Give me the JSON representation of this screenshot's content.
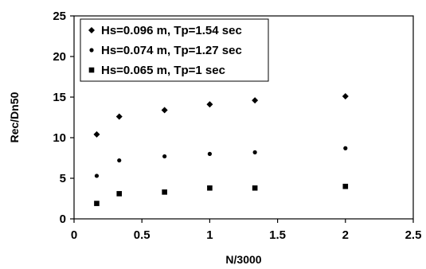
{
  "chart_data": {
    "type": "scatter",
    "xlabel": "N/3000",
    "ylabel": "Rec/Dn50",
    "xlim": [
      0,
      2.5
    ],
    "ylim": [
      0,
      25
    ],
    "xticks": [
      "0",
      "0.5",
      "1",
      "1.5",
      "2",
      "2.5"
    ],
    "yticks": [
      "0",
      "5",
      "10",
      "15",
      "20",
      "25"
    ],
    "grid": false,
    "legend_position": "top-left",
    "series": [
      {
        "name": "Hs=0.096 m,  Tp=1.54 sec",
        "marker": "diamond",
        "x": [
          0.167,
          0.333,
          0.667,
          1.0,
          1.333,
          2.0
        ],
        "y": [
          10.4,
          12.6,
          13.4,
          14.1,
          14.6,
          15.1
        ]
      },
      {
        "name": "Hs=0.074 m,  Tp=1.27 sec",
        "marker": "circle",
        "x": [
          0.167,
          0.333,
          0.667,
          1.0,
          1.333,
          2.0
        ],
        "y": [
          5.3,
          7.2,
          7.7,
          8.0,
          8.2,
          8.7
        ]
      },
      {
        "name": "Hs=0.065 m,  Tp=1 sec",
        "marker": "square",
        "x": [
          0.167,
          0.333,
          0.667,
          1.0,
          1.333,
          2.0
        ],
        "y": [
          1.9,
          3.1,
          3.3,
          3.8,
          3.8,
          4.0
        ]
      }
    ]
  }
}
